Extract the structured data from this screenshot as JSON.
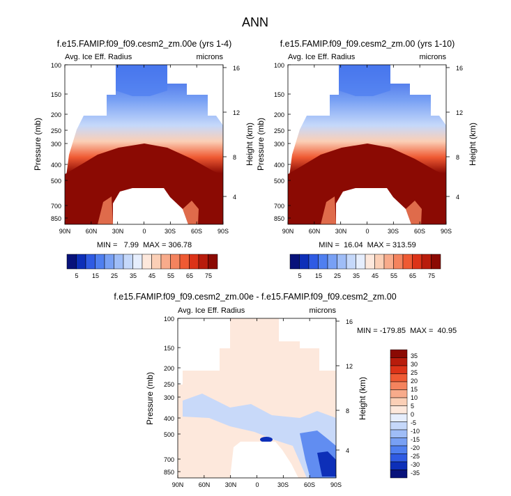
{
  "figure_title": "ANN",
  "chart_data": [
    {
      "type": "heatmap",
      "title": "f.e15.FAMIP.f09_f09.cesm2_zm.00e (yrs 1-4)",
      "left_label": "Avg. Ice Eff. Radius",
      "right_label": "microns",
      "xlabel": "",
      "ylabel": "Pressure (mb)",
      "ylabel_right": "Height (km)",
      "x_ticks": [
        "90N",
        "60N",
        "30N",
        "0",
        "30S",
        "60S",
        "90S"
      ],
      "y_ticks": [
        "100",
        "150",
        "200",
        "250",
        "300",
        "400",
        "500",
        "700",
        "850"
      ],
      "y_ticks_right": [
        "16",
        "12",
        "8",
        "4"
      ],
      "stats_text": "MIN =   7.99  MAX = 306.78",
      "min": 7.99,
      "max": 306.78,
      "colorbar_ticks": [
        "5",
        "15",
        "25",
        "35",
        "45",
        "55",
        "65",
        "75"
      ]
    },
    {
      "type": "heatmap",
      "title": "f.e15.FAMIP.f09_f09.cesm2_zm.00 (yrs 1-10)",
      "left_label": "Avg. Ice Eff. Radius",
      "right_label": "microns",
      "xlabel": "",
      "ylabel": "Pressure (mb)",
      "ylabel_right": "Height (km)",
      "x_ticks": [
        "90N",
        "60N",
        "30N",
        "0",
        "30S",
        "60S",
        "90S"
      ],
      "y_ticks": [
        "100",
        "150",
        "200",
        "250",
        "300",
        "400",
        "500",
        "700",
        "850"
      ],
      "y_ticks_right": [
        "16",
        "12",
        "8",
        "4"
      ],
      "stats_text": "MIN =  16.04  MAX = 313.59",
      "min": 16.04,
      "max": 313.59,
      "colorbar_ticks": [
        "5",
        "15",
        "25",
        "35",
        "45",
        "55",
        "65",
        "75"
      ]
    },
    {
      "type": "heatmap",
      "title": "f.e15.FAMIP.f09_f09.cesm2_zm.00e - f.e15.FAMIP.f09_f09.cesm2_zm.00",
      "left_label": "Avg. Ice Eff. Radius",
      "right_label": "microns",
      "xlabel": "",
      "ylabel": "Pressure (mb)",
      "ylabel_right": "Height (km)",
      "x_ticks": [
        "90N",
        "60N",
        "30N",
        "0",
        "30S",
        "60S",
        "90S"
      ],
      "y_ticks": [
        "100",
        "150",
        "200",
        "250",
        "300",
        "400",
        "500",
        "700",
        "850"
      ],
      "y_ticks_right": [
        "16",
        "12",
        "8",
        "4"
      ],
      "stats_text": "MIN = -179.85  MAX =  40.95",
      "min": -179.85,
      "max": 40.95,
      "colorbar_ticks": [
        "35",
        "30",
        "25",
        "20",
        "15",
        "10",
        "5",
        "0",
        "-5",
        "-10",
        "-15",
        "-20",
        "-25",
        "-30",
        "-35"
      ]
    }
  ],
  "colors": {
    "seq": [
      "#08127a",
      "#0d2fb8",
      "#2f5be3",
      "#4f7ff0",
      "#78a0f4",
      "#9fbdf7",
      "#c5d8fa",
      "#e6eefd",
      "#fde8dc",
      "#fbcfb6",
      "#f8ab8b",
      "#f4835e",
      "#ef5a33",
      "#dc3318",
      "#b81c0c",
      "#8b0a03"
    ],
    "diverging": [
      "#8b0a03",
      "#b81c0c",
      "#dc3318",
      "#ef5a33",
      "#f4835e",
      "#f8ab8b",
      "#fbcfb6",
      "#fde8dc",
      "#e6eefd",
      "#c5d8fa",
      "#9fbdf7",
      "#78a0f4",
      "#4f7ff0",
      "#2f5be3",
      "#0d2fb8",
      "#08127a"
    ]
  }
}
